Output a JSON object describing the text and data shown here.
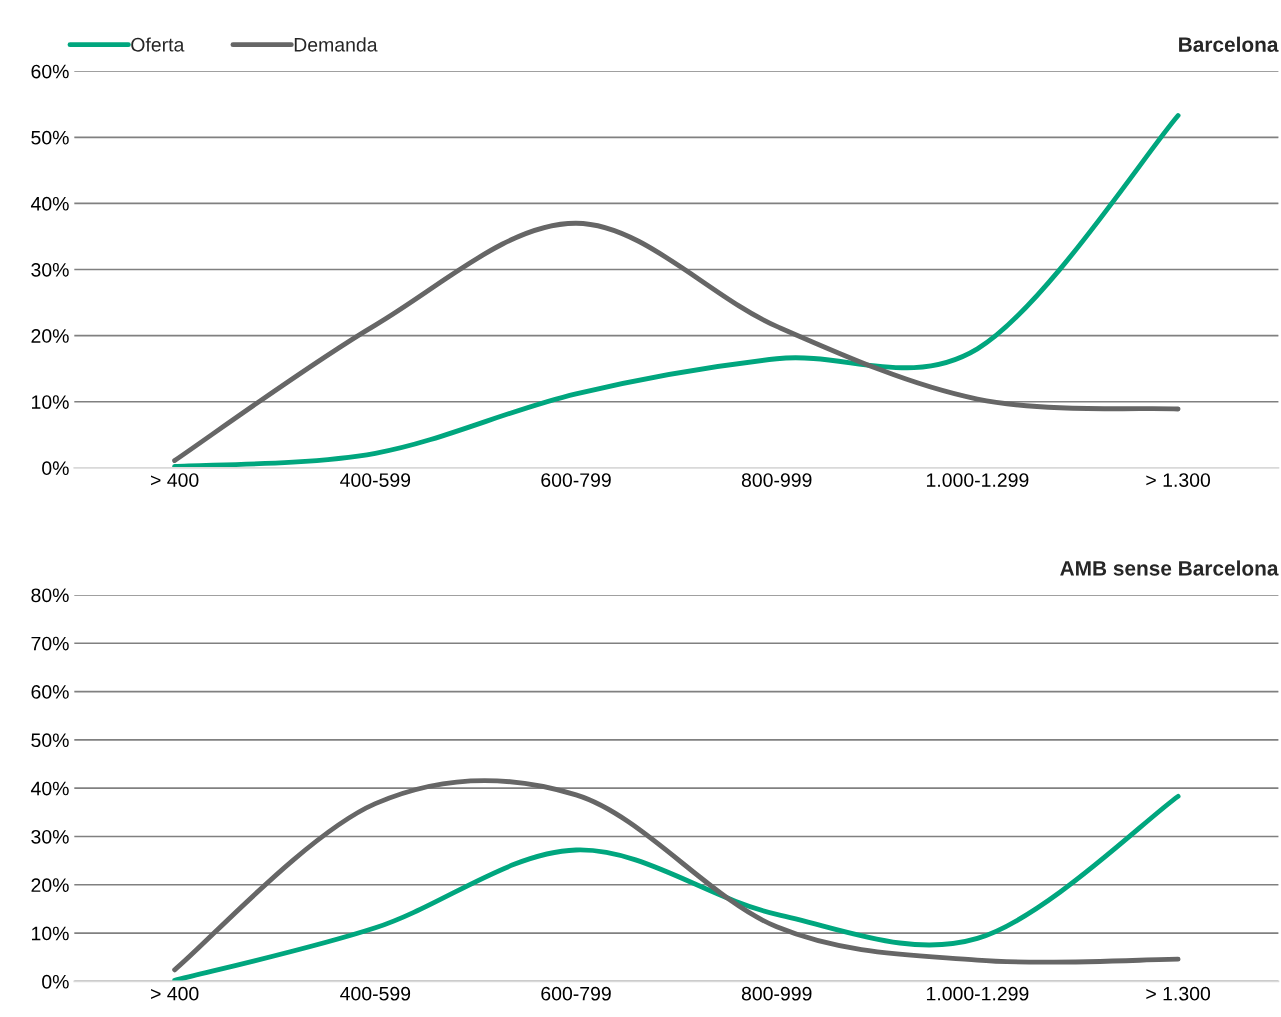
{
  "chart_data": [
    {
      "type": "line",
      "title": "Barcelona",
      "categories": [
        "> 400",
        "400-599",
        "600-799",
        "800-999",
        "1.000-1.299",
        "> 1.300"
      ],
      "series": [
        {
          "name": "Oferta",
          "color": "#00a67e",
          "values": [
            0.2,
            2.2,
            11.2,
            16.5,
            18,
            53.3
          ]
        },
        {
          "name": "Demanda",
          "color": "#666666",
          "values": [
            1.1,
            21.6,
            37,
            21.4,
            10.4,
            8.9
          ]
        }
      ],
      "ylim": [
        0,
        60
      ],
      "yticks": [
        {
          "value": 0,
          "label": "0%"
        },
        {
          "value": 10,
          "label": "10%"
        },
        {
          "value": 20,
          "label": "20%"
        },
        {
          "value": 30,
          "label": "30%"
        },
        {
          "value": 40,
          "label": "40%"
        },
        {
          "value": 50,
          "label": "50%"
        },
        {
          "value": 60,
          "label": "60%"
        }
      ],
      "grid": "y",
      "legend": "top left",
      "marker": "none",
      "line_style": "solid"
    },
    {
      "type": "line",
      "title": "AMB sense Barcelona",
      "categories": [
        "> 400",
        "400-599",
        "600-799",
        "800-999",
        "1.000-1.299",
        "> 1.300"
      ],
      "series": [
        {
          "color": "#00a67e",
          "values": [
            0.2,
            11.1,
            27.2,
            13.9,
            8.9,
            38.3
          ]
        },
        {
          "color": "#666666",
          "values": [
            2.4,
            36.8,
            38.6,
            11.3,
            4.4,
            4.6
          ]
        }
      ],
      "ylim": [
        0,
        80
      ],
      "yticks": [
        {
          "value": 0,
          "label": "0%"
        },
        {
          "value": 10,
          "label": "10%"
        },
        {
          "value": 20,
          "label": "20%"
        },
        {
          "value": 30,
          "label": "30%"
        },
        {
          "value": 40,
          "label": "40%"
        },
        {
          "value": 50,
          "label": "50%"
        },
        {
          "value": 60,
          "label": "60%"
        },
        {
          "value": 70,
          "label": "70%"
        },
        {
          "value": 80,
          "label": "80%"
        }
      ],
      "grid": "y",
      "marker": "none",
      "line_style": "solid"
    }
  ]
}
